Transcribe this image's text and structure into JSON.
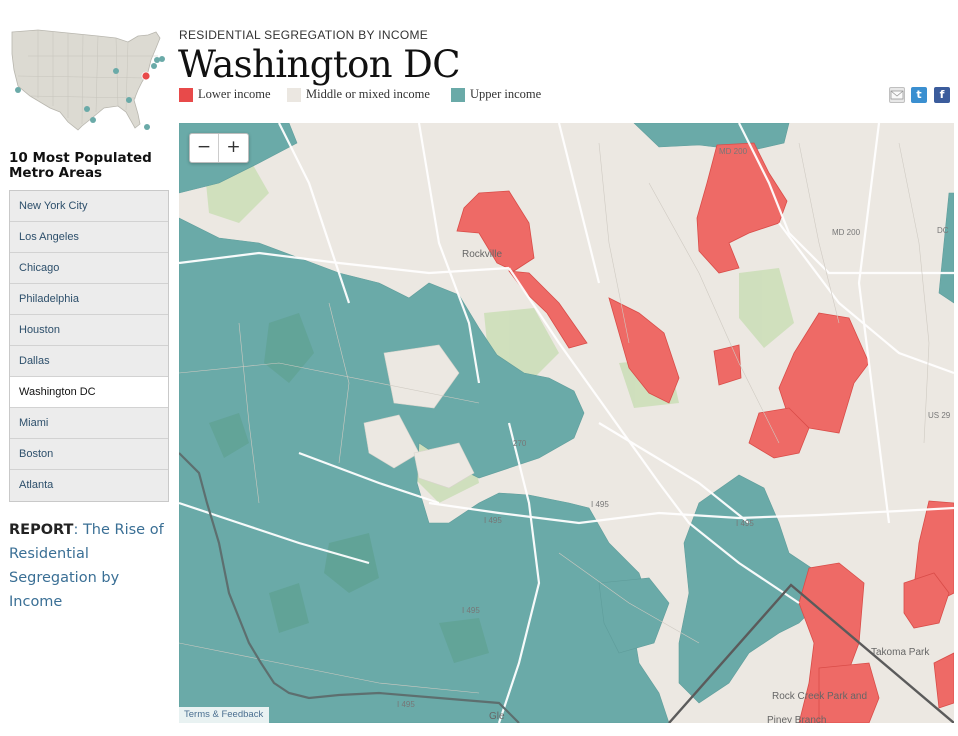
{
  "sidebar": {
    "heading": "10 Most Populated Metro Areas",
    "cities": [
      "New York City",
      "Los Angeles",
      "Chicago",
      "Philadelphia",
      "Houston",
      "Dallas",
      "Washington DC",
      "Miami",
      "Boston",
      "Atlanta"
    ],
    "active_city": "Washington DC",
    "report": {
      "lead": "REPORT",
      "colon": ":",
      "link": "The Rise of Residential Segregation by Income"
    }
  },
  "header": {
    "kicker": "RESIDENTIAL SEGREGATION BY INCOME",
    "title": "Washington DC"
  },
  "legend": [
    {
      "label": "Lower income",
      "color": "#e84a4a"
    },
    {
      "label": "Middle or mixed income",
      "color": "#ebe7e1"
    },
    {
      "label": "Upper income",
      "color": "#6aaaa8"
    }
  ],
  "share": {
    "email_icon": "email-icon",
    "twitter_icon": "twitter-icon",
    "facebook_icon": "facebook-icon"
  },
  "map": {
    "zoom_out": "−",
    "zoom_in": "+",
    "terms": "Terms & Feedback",
    "place_labels": [
      "Rockville",
      "Takoma Park",
      "Rock Creek Park and",
      "Piney Branch",
      "Gle"
    ],
    "road_labels": [
      "MD 200",
      "MD 200",
      "270",
      "I 495",
      "I 495",
      "I 495",
      "I 495",
      "I 495",
      "US 29",
      "DC"
    ]
  },
  "colors": {
    "lower": "#e84a4a",
    "middle": "#ebe7e1",
    "upper": "#6aaaa8",
    "map_base": "#f2efe9",
    "park": "#c7dfb2"
  }
}
